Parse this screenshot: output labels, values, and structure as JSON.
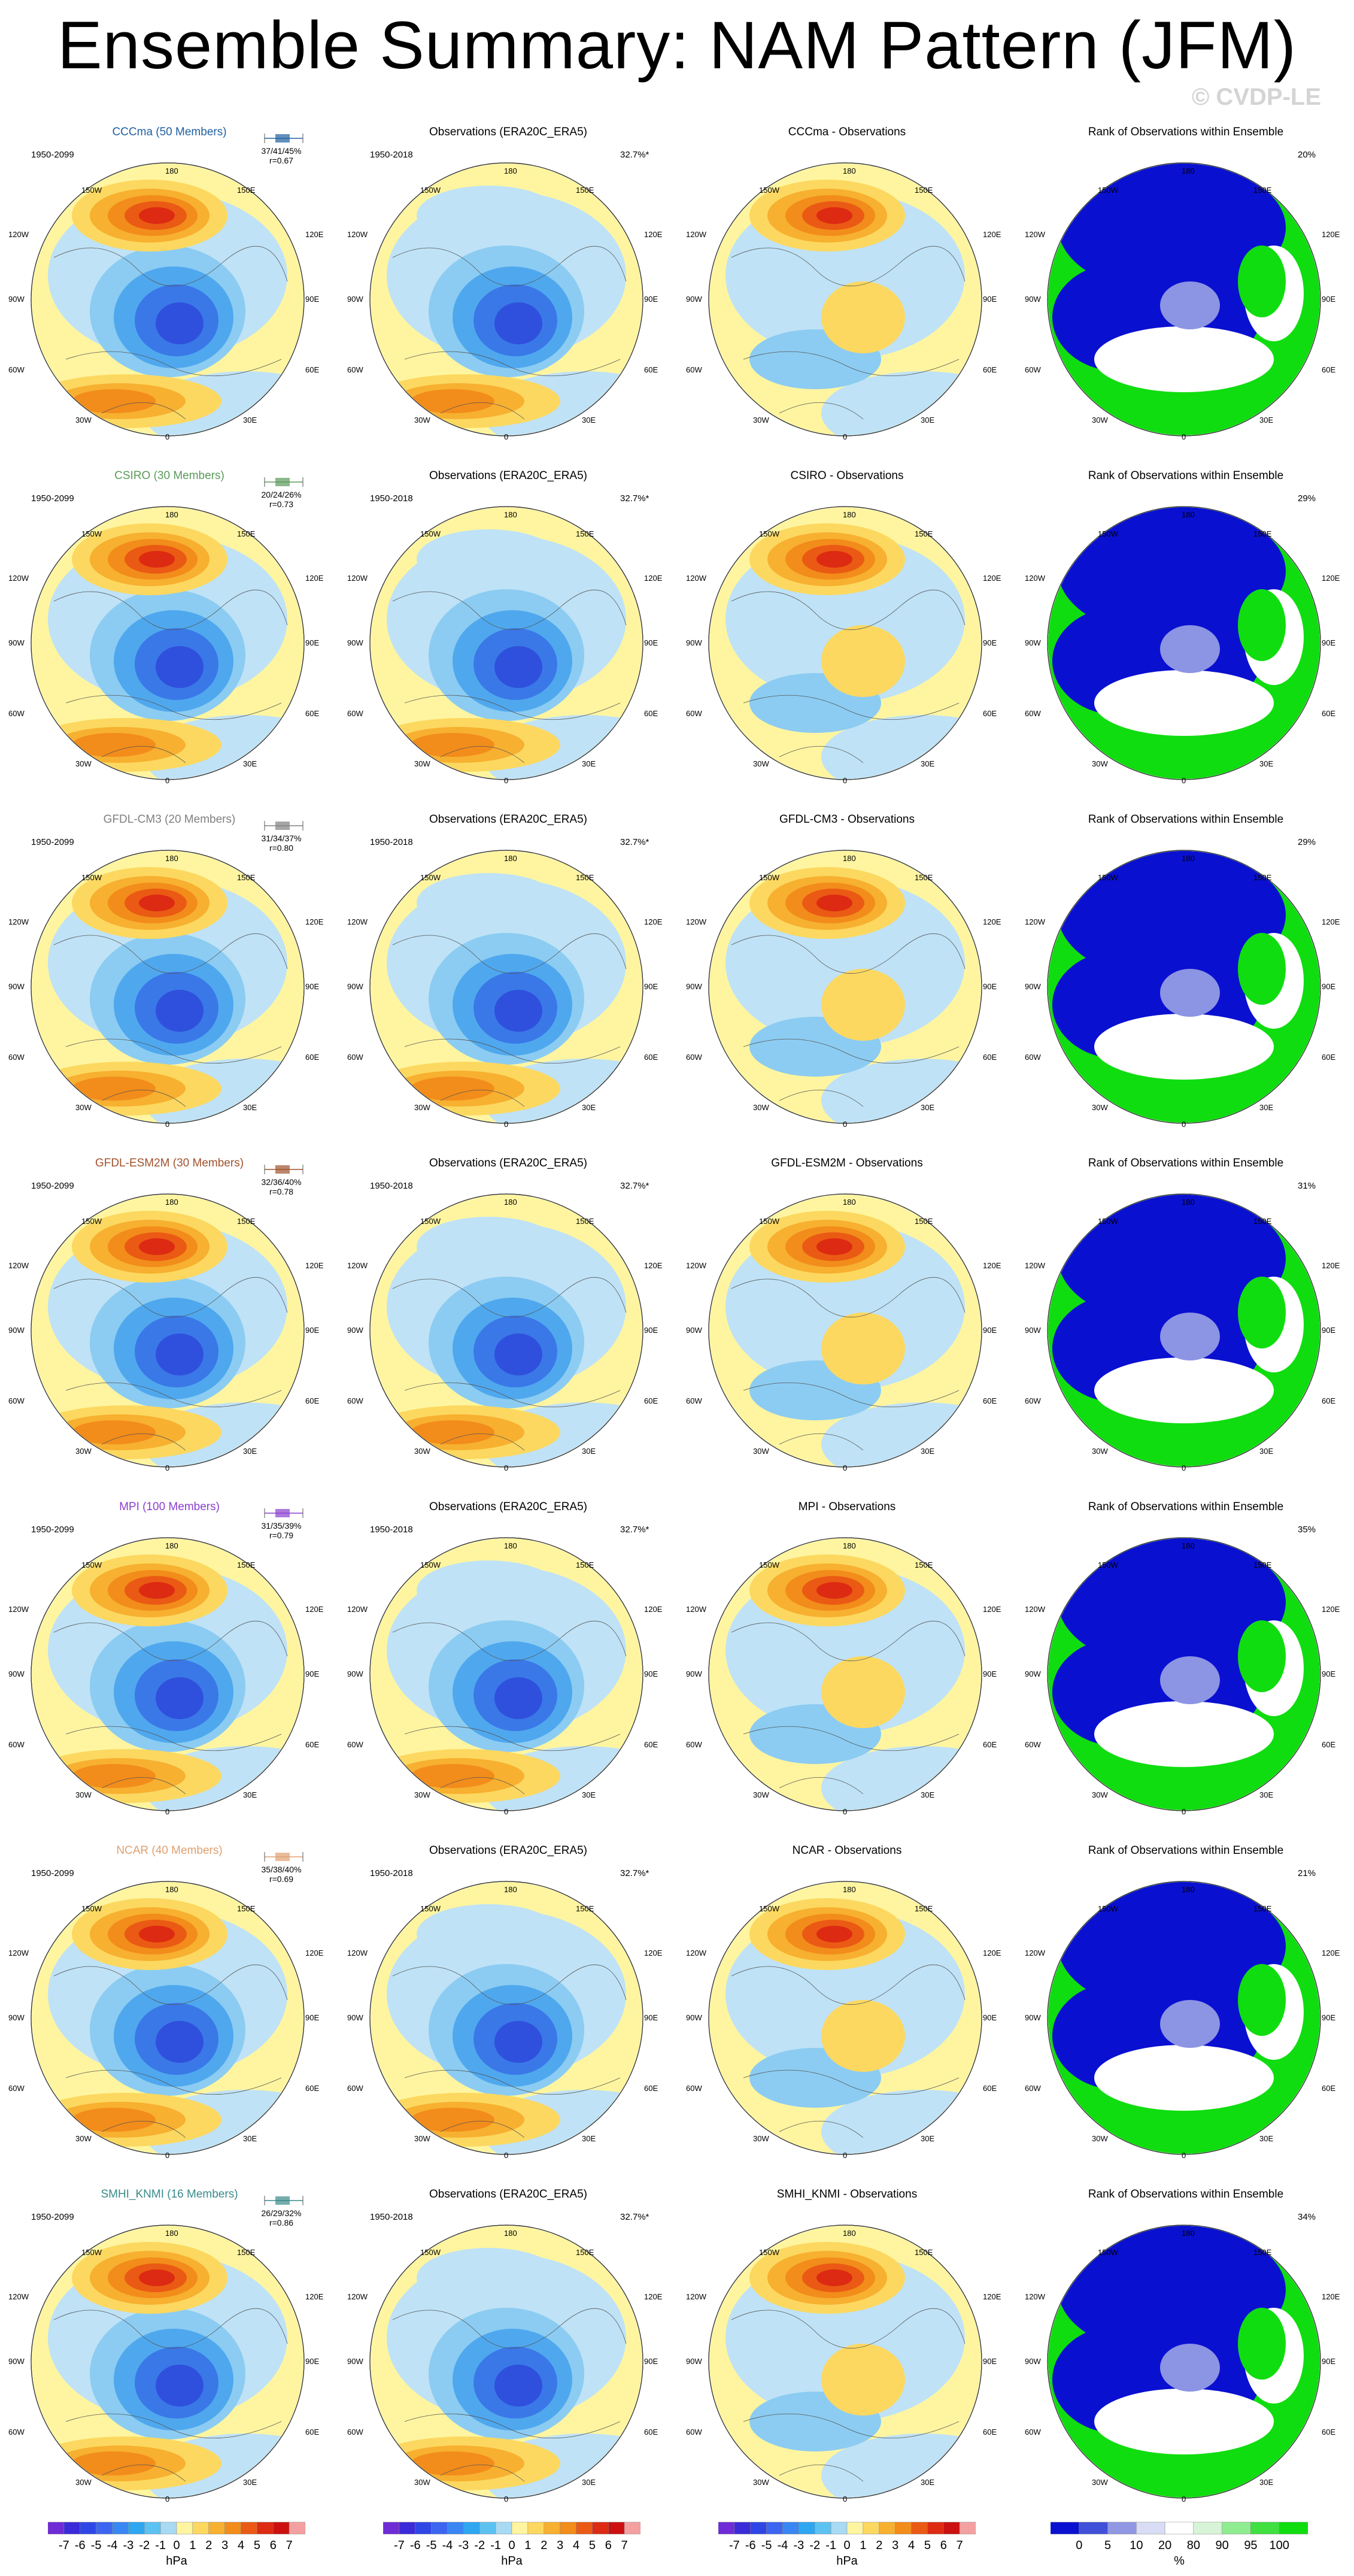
{
  "title": "Ensemble Summary: NAM Pattern (JFM)",
  "watermark": "© CVDP-LE",
  "compass": {
    "top": "180",
    "left": "90W",
    "right": "90E",
    "bottom": "0",
    "ul": "150W",
    "ur": "150E",
    "ml_up": "120W",
    "mr_up": "120E",
    "ml_dn": "60W",
    "mr_dn": "60E",
    "ll": "30W",
    "lr": "30E"
  },
  "rows": [
    {
      "model": "CCCma (50 Members)",
      "color": "#2060a0",
      "period": "1950-2099",
      "stats": "37/41/45%",
      "r": "r=0.67",
      "obs_title": "Observations (ERA20C_ERA5)",
      "obs_period": "1950-2018",
      "obs_pct": "32.7%*",
      "diff_title": "CCCma - Observations",
      "rank_title": "Rank of Observations within Ensemble",
      "rank_pct": "20%"
    },
    {
      "model": "CSIRO (30 Members)",
      "color": "#5a9a5a",
      "period": "1950-2099",
      "stats": "20/24/26%",
      "r": "r=0.73",
      "obs_title": "Observations (ERA20C_ERA5)",
      "obs_period": "1950-2018",
      "obs_pct": "32.7%*",
      "diff_title": "CSIRO - Observations",
      "rank_title": "Rank of Observations within Ensemble",
      "rank_pct": "29%"
    },
    {
      "model": "GFDL-CM3 (20 Members)",
      "color": "#808080",
      "period": "1950-2099",
      "stats": "31/34/37%",
      "r": "r=0.80",
      "obs_title": "Observations (ERA20C_ERA5)",
      "obs_period": "1950-2018",
      "obs_pct": "32.7%*",
      "diff_title": "GFDL-CM3 - Observations",
      "rank_title": "Rank of Observations within Ensemble",
      "rank_pct": "29%"
    },
    {
      "model": "GFDL-ESM2M (30 Members)",
      "color": "#a0522d",
      "period": "1950-2099",
      "stats": "32/36/40%",
      "r": "r=0.78",
      "obs_title": "Observations (ERA20C_ERA5)",
      "obs_period": "1950-2018",
      "obs_pct": "32.7%*",
      "diff_title": "GFDL-ESM2M - Observations",
      "rank_title": "Rank of Observations within Ensemble",
      "rank_pct": "31%"
    },
    {
      "model": "MPI (100 Members)",
      "color": "#8a3fd0",
      "period": "1950-2099",
      "stats": "31/35/39%",
      "r": "r=0.79",
      "obs_title": "Observations (ERA20C_ERA5)",
      "obs_period": "1950-2018",
      "obs_pct": "32.7%*",
      "diff_title": "MPI - Observations",
      "rank_title": "Rank of Observations within Ensemble",
      "rank_pct": "35%"
    },
    {
      "model": "NCAR (40 Members)",
      "color": "#e0a070",
      "period": "1950-2099",
      "stats": "35/38/40%",
      "r": "r=0.69",
      "obs_title": "Observations (ERA20C_ERA5)",
      "obs_period": "1950-2018",
      "obs_pct": "32.7%*",
      "diff_title": "NCAR - Observations",
      "rank_title": "Rank of Observations within Ensemble",
      "rank_pct": "21%"
    },
    {
      "model": "SMHI_KNMI (16 Members)",
      "color": "#3a8a8a",
      "period": "1950-2099",
      "stats": "26/29/32%",
      "r": "r=0.86",
      "obs_title": "Observations (ERA20C_ERA5)",
      "obs_period": "1950-2018",
      "obs_pct": "32.7%*",
      "diff_title": "SMHI_KNMI - Observations",
      "rank_title": "Rank of Observations within Ensemble",
      "rank_pct": "34%"
    }
  ],
  "colorbar_hpa": {
    "labels": [
      "-7",
      "-6",
      "-5",
      "-4",
      "-3",
      "-2",
      "-1",
      "0",
      "1",
      "2",
      "3",
      "4",
      "5",
      "6",
      "7"
    ],
    "unit": "hPa",
    "colors": [
      "#6e2bd6",
      "#3a2ad8",
      "#2f46e6",
      "#3c66f0",
      "#3a86f2",
      "#2ea6f0",
      "#5cc2f2",
      "#a8daf4",
      "#fff5a0",
      "#fcd860",
      "#f7b030",
      "#f28c1a",
      "#ea5a14",
      "#dd2a12",
      "#cc1010",
      "#f4a0a0"
    ]
  },
  "colorbar_rank": {
    "labels": [
      "0",
      "5",
      "10",
      "20",
      "80",
      "90",
      "95",
      "100"
    ],
    "unit": "%",
    "colors": [
      "#0a10d0",
      "#4050d8",
      "#9098e4",
      "#d8dcf4",
      "#ffffff",
      "#d8f4d8",
      "#90ec90",
      "#40e040",
      "#10dd10"
    ]
  },
  "map_colors": {
    "ocean": "#ffffff",
    "pos1": "#fff5a0",
    "pos2": "#fcd860",
    "pos3": "#f7b030",
    "pos4": "#f28c1a",
    "pos5": "#ea5a14",
    "pos6": "#dd2a12",
    "neg1": "#bfe2f6",
    "neg2": "#8cccf2",
    "neg3": "#4fa8ee",
    "neg4": "#3a78e8",
    "neg5": "#2f50dc",
    "rank_low": "#0a10d0",
    "rank_high": "#10dd10"
  }
}
